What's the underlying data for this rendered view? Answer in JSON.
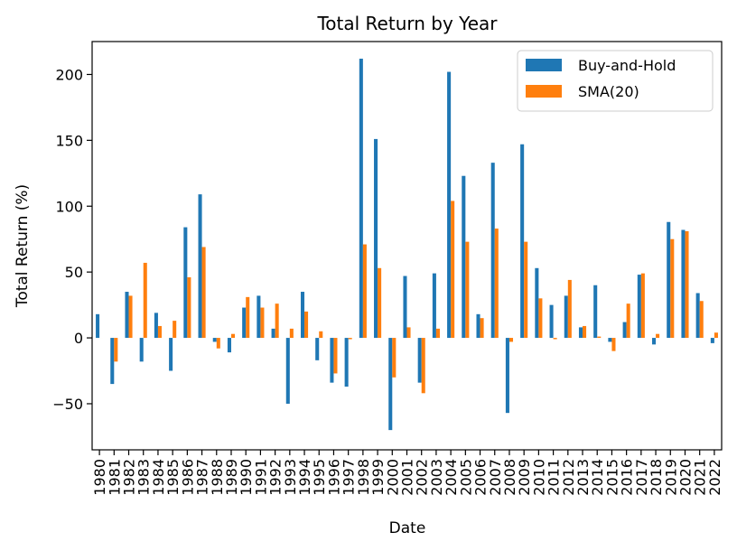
{
  "chart_data": {
    "type": "bar",
    "title": "Total Return by Year",
    "xlabel": "Date",
    "ylabel": "Total Return (%)",
    "categories": [
      "1980",
      "1981",
      "1982",
      "1983",
      "1984",
      "1985",
      "1986",
      "1987",
      "1988",
      "1989",
      "1990",
      "1991",
      "1992",
      "1993",
      "1994",
      "1995",
      "1996",
      "1997",
      "1998",
      "1999",
      "2000",
      "2001",
      "2002",
      "2003",
      "2004",
      "2005",
      "2006",
      "2007",
      "2008",
      "2009",
      "2010",
      "2011",
      "2012",
      "2013",
      "2014",
      "2015",
      "2016",
      "2017",
      "2018",
      "2019",
      "2020",
      "2021",
      "2022"
    ],
    "series": [
      {
        "name": "Buy-and-Hold",
        "color": "#1f77b4",
        "values": [
          18,
          -35,
          35,
          -18,
          19,
          -25,
          84,
          109,
          -3,
          -11,
          23,
          32,
          7,
          -50,
          35,
          -17,
          -34,
          -37,
          212,
          151,
          -70,
          47,
          -34,
          49,
          202,
          123,
          18,
          133,
          -57,
          147,
          53,
          25,
          32,
          8,
          40,
          -3,
          12,
          48,
          -5,
          88,
          82,
          34,
          -4
        ]
      },
      {
        "name": "SMA(20)",
        "color": "#ff7f0e",
        "values": [
          0,
          -18,
          32,
          57,
          9,
          13,
          46,
          69,
          -8,
          3,
          31,
          23,
          26,
          7,
          20,
          5,
          -27,
          -1,
          71,
          53,
          -30,
          8,
          -42,
          7,
          104,
          73,
          15,
          83,
          -3,
          73,
          30,
          -1,
          44,
          9,
          1,
          -10,
          26,
          49,
          3,
          75,
          81,
          28,
          4
        ]
      }
    ],
    "ylim": [
      -85,
      225
    ],
    "yticks": [
      -50,
      0,
      50,
      100,
      150,
      200
    ],
    "yticklabels": [
      "−50",
      "0",
      "50",
      "100",
      "150",
      "200"
    ],
    "grid": false,
    "legend": "top-right"
  }
}
